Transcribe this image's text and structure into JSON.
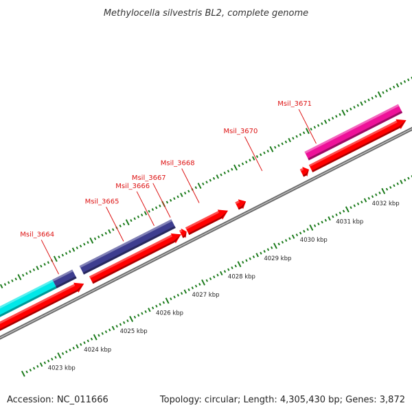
{
  "title": "Methylocella silvestris BL2, complete genome",
  "footer": {
    "accession": "Accession: NC_011666",
    "stats": "Topology: circular; Length: 4,305,430 bp; Genes: 3,872"
  },
  "colors": {
    "forward_cds": "#ff0000",
    "backbone": "#999999",
    "tick": "#1a7a1a",
    "gene_label": "#dd1111",
    "blast_navy": "#3d3d8f",
    "blast_cyan": "#00e8e8",
    "blast_magenta": "#ee1199"
  },
  "scale": {
    "unit": "kbp",
    "ticks": [
      {
        "kbp": 4023,
        "label": "4023 kbp"
      },
      {
        "kbp": 4024,
        "label": "4024 kbp"
      },
      {
        "kbp": 4025,
        "label": "4025 kbp"
      },
      {
        "kbp": 4026,
        "label": "4026 kbp"
      },
      {
        "kbp": 4027,
        "label": "4027 kbp"
      },
      {
        "kbp": 4028,
        "label": "4028 kbp"
      },
      {
        "kbp": 4029,
        "label": "4029 kbp"
      },
      {
        "kbp": 4030,
        "label": "4030 kbp"
      },
      {
        "kbp": 4031,
        "label": "4031 kbp"
      },
      {
        "kbp": 4032,
        "label": "4032 kbp"
      }
    ]
  },
  "features": [
    {
      "start": 4021.6,
      "end": 4024.35,
      "strand": "forward"
    },
    {
      "start": 4024.55,
      "end": 4027.05,
      "strand": "forward"
    },
    {
      "start": 4027.05,
      "end": 4027.2,
      "strand": "forward"
    },
    {
      "start": 4027.22,
      "end": 4028.35,
      "strand": "forward"
    },
    {
      "start": 4028.6,
      "end": 4028.85,
      "strand": "forward"
    },
    {
      "start": 4030.4,
      "end": 4030.6,
      "strand": "forward"
    },
    {
      "start": 4030.65,
      "end": 4033.3,
      "strand": "forward"
    }
  ],
  "blast_hits": [
    {
      "start": 4021.6,
      "end": 4023.7,
      "color": "cyan"
    },
    {
      "start": 4023.7,
      "end": 4024.25,
      "color": "navy"
    },
    {
      "start": 4024.45,
      "end": 4027.0,
      "color": "navy"
    },
    {
      "start": 4030.7,
      "end": 4033.3,
      "color": "magenta"
    }
  ],
  "gene_labels": [
    {
      "text": "Msil_3664",
      "kbp": 4023.9
    },
    {
      "text": "Msil_3665",
      "kbp": 4025.7
    },
    {
      "text": "Msil_3666",
      "kbp": 4026.55
    },
    {
      "text": "Msil_3667",
      "kbp": 4027.0
    },
    {
      "text": "Msil_3668",
      "kbp": 4027.8
    },
    {
      "text": "Msil_3670",
      "kbp": 4029.55
    },
    {
      "text": "Msil_3671",
      "kbp": 4031.05
    }
  ]
}
